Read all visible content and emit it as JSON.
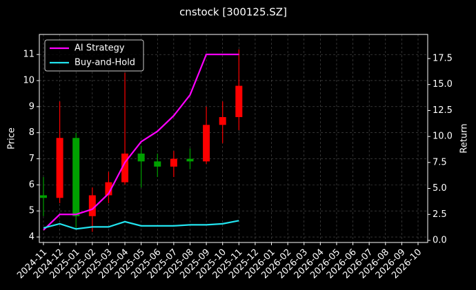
{
  "chart_data": {
    "type": "candlestick",
    "title": "cnstock [300125.SZ]",
    "ylabel": "Price",
    "y2label": "Return",
    "x": [
      "2024-11",
      "2024-12",
      "2025-01",
      "2025-02",
      "2025-03",
      "2025-04",
      "2025-05",
      "2025-06",
      "2025-07",
      "2025-08",
      "2025-09",
      "2025-10",
      "2025-11"
    ],
    "open": [
      5.6,
      5.5,
      7.8,
      4.8,
      5.6,
      6.1,
      7.2,
      6.9,
      6.7,
      7.0,
      6.9,
      8.3,
      8.6
    ],
    "high": [
      6.3,
      9.2,
      8.0,
      5.9,
      6.5,
      10.3,
      7.5,
      7.2,
      7.3,
      7.4,
      9.0,
      9.2,
      11.2
    ],
    "low": [
      4.8,
      5.3,
      4.3,
      4.2,
      5.3,
      6.0,
      5.9,
      6.3,
      6.3,
      6.6,
      6.8,
      7.6,
      8.1
    ],
    "close": [
      5.5,
      7.8,
      4.8,
      5.6,
      6.1,
      7.2,
      6.9,
      6.7,
      7.0,
      6.9,
      8.3,
      8.6,
      9.8
    ],
    "up_color": "#ff0000",
    "down_color": "#00a000",
    "series": [
      {
        "name": "AI Strategy",
        "color": "#ff00ff",
        "axis": "y2",
        "values": [
          1.0,
          2.5,
          2.5,
          3.0,
          4.5,
          7.5,
          9.5,
          10.5,
          12.0,
          14.0,
          17.9,
          17.9,
          17.9
        ]
      },
      {
        "name": "Buy-and-Hold",
        "color": "#22e5f0",
        "axis": "y2",
        "values": [
          1.2,
          1.6,
          1.1,
          1.3,
          1.3,
          1.8,
          1.4,
          1.4,
          1.4,
          1.5,
          1.5,
          1.6,
          1.9
        ]
      }
    ],
    "xlim": [
      "2024-11",
      "2026-10"
    ],
    "xticks": [
      "2024-11",
      "2024-12",
      "2025-01",
      "2025-02",
      "2025-03",
      "2025-04",
      "2025-05",
      "2025-06",
      "2025-07",
      "2025-08",
      "2025-09",
      "2025-10",
      "2025-11",
      "2025-12",
      "2026-01",
      "2026-02",
      "2026-03",
      "2026-04",
      "2026-05",
      "2026-06",
      "2026-07",
      "2026-08",
      "2026-09",
      "2026-10"
    ],
    "ylim": [
      3.79,
      11.77
    ],
    "yticks": [
      4,
      5,
      6,
      7,
      8,
      9,
      10,
      11
    ],
    "y2lim": [
      -0.2,
      19.82
    ],
    "y2ticks": [
      {
        "value": 0,
        "label": "0.0"
      },
      2.5,
      {
        "value": 5,
        "label": "5.0"
      },
      7.5,
      {
        "value": 10,
        "label": "10.0"
      },
      12.5,
      {
        "value": 15,
        "label": "15.0"
      },
      17.5
    ],
    "grid": true,
    "legend": "upper left"
  }
}
